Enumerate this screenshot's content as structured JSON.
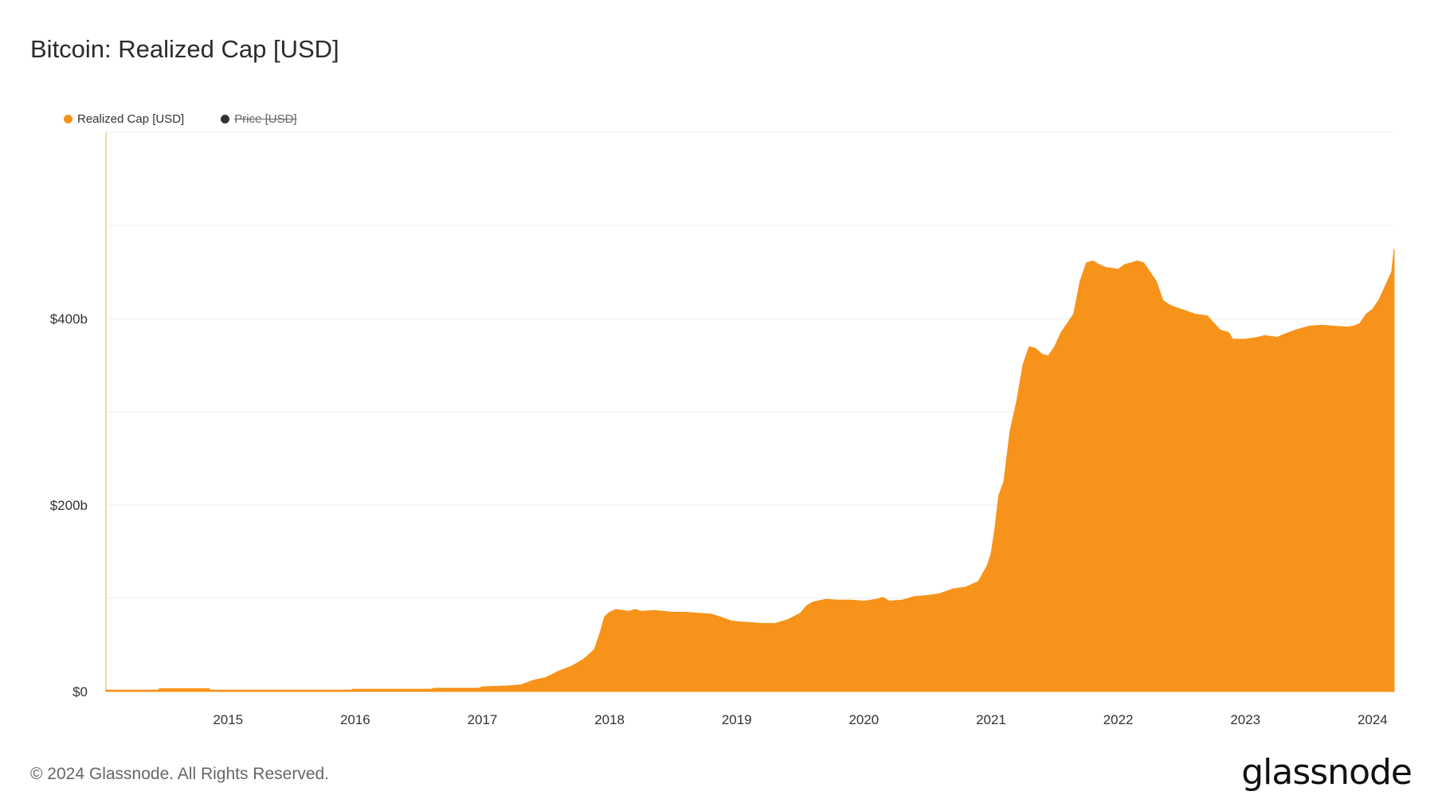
{
  "header": {
    "title": "Bitcoin: Realized Cap [USD]"
  },
  "legend": [
    {
      "label": "Realized Cap [USD]",
      "color": "#f7931a",
      "active": true
    },
    {
      "label": "Price [USD]",
      "color": "#333333",
      "active": false
    }
  ],
  "footer": {
    "copyright": "© 2024 Glassnode. All Rights Reserved.",
    "brand": "glassnode"
  },
  "chart_data": {
    "type": "area",
    "title": "Bitcoin: Realized Cap [USD]",
    "xlabel": "",
    "ylabel": "",
    "x_ticks": [
      "2015",
      "2016",
      "2017",
      "2018",
      "2019",
      "2020",
      "2021",
      "2022",
      "2023",
      "2024"
    ],
    "y_ticks": [
      {
        "value": 0,
        "label": "$0"
      },
      {
        "value": 200,
        "label": "$200b"
      },
      {
        "value": 400,
        "label": "$400b"
      }
    ],
    "ylim": [
      0,
      600
    ],
    "xlim": [
      2014.04,
      2024.17
    ],
    "grid": true,
    "legend_position": "top-left",
    "series": [
      {
        "name": "Realized Cap [USD]",
        "color": "#f7931a",
        "x": [
          2014.04,
          2014.45,
          2014.46,
          2014.85,
          2014.86,
          2015.3,
          2015.97,
          2015.98,
          2016.6,
          2016.62,
          2016.97,
          2017.0,
          2017.2,
          2017.3,
          2017.4,
          2017.5,
          2017.6,
          2017.7,
          2017.8,
          2017.88,
          2017.93,
          2017.96,
          2018.0,
          2018.05,
          2018.1,
          2018.15,
          2018.2,
          2018.25,
          2018.35,
          2018.5,
          2018.6,
          2018.7,
          2018.8,
          2018.87,
          2018.95,
          2019.0,
          2019.1,
          2019.2,
          2019.3,
          2019.4,
          2019.5,
          2019.55,
          2019.6,
          2019.7,
          2019.8,
          2019.9,
          2020.0,
          2020.1,
          2020.15,
          2020.2,
          2020.3,
          2020.4,
          2020.5,
          2020.6,
          2020.7,
          2020.8,
          2020.85,
          2020.9,
          2020.97,
          2021.0,
          2021.03,
          2021.06,
          2021.1,
          2021.15,
          2021.2,
          2021.25,
          2021.3,
          2021.35,
          2021.4,
          2021.45,
          2021.5,
          2021.55,
          2021.6,
          2021.65,
          2021.7,
          2021.75,
          2021.8,
          2021.85,
          2021.9,
          2022.0,
          2022.05,
          2022.1,
          2022.15,
          2022.2,
          2022.25,
          2022.3,
          2022.35,
          2022.4,
          2022.45,
          2022.5,
          2022.6,
          2022.7,
          2022.8,
          2022.87,
          2022.9,
          2023.0,
          2023.1,
          2023.15,
          2023.2,
          2023.25,
          2023.3,
          2023.4,
          2023.5,
          2023.6,
          2023.7,
          2023.8,
          2023.85,
          2023.9,
          2023.95,
          2024.0,
          2024.05,
          2024.1,
          2024.15,
          2024.17
        ],
        "values": [
          1.5,
          1.5,
          3,
          3,
          1.5,
          1.5,
          1.5,
          2.5,
          2.5,
          3.5,
          3.5,
          5,
          6,
          7,
          12,
          15,
          22,
          27,
          35,
          45,
          65,
          80,
          85,
          88,
          87,
          86,
          88,
          86,
          87,
          85,
          85,
          84,
          83,
          80,
          76,
          75,
          74,
          73,
          73,
          77,
          84,
          92,
          96,
          99,
          98,
          98,
          97,
          99,
          101,
          97,
          98,
          102,
          103,
          105,
          110,
          112,
          115,
          118,
          135,
          148,
          175,
          210,
          225,
          280,
          310,
          350,
          370,
          368,
          362,
          360,
          370,
          385,
          395,
          405,
          440,
          460,
          462,
          458,
          455,
          453,
          458,
          460,
          462,
          460,
          450,
          440,
          420,
          415,
          412,
          410,
          405,
          403,
          388,
          385,
          378,
          378,
          380,
          382,
          381,
          380,
          383,
          388,
          392,
          393,
          392,
          391,
          392,
          395,
          405,
          410,
          420,
          435,
          450,
          475
        ]
      }
    ]
  }
}
